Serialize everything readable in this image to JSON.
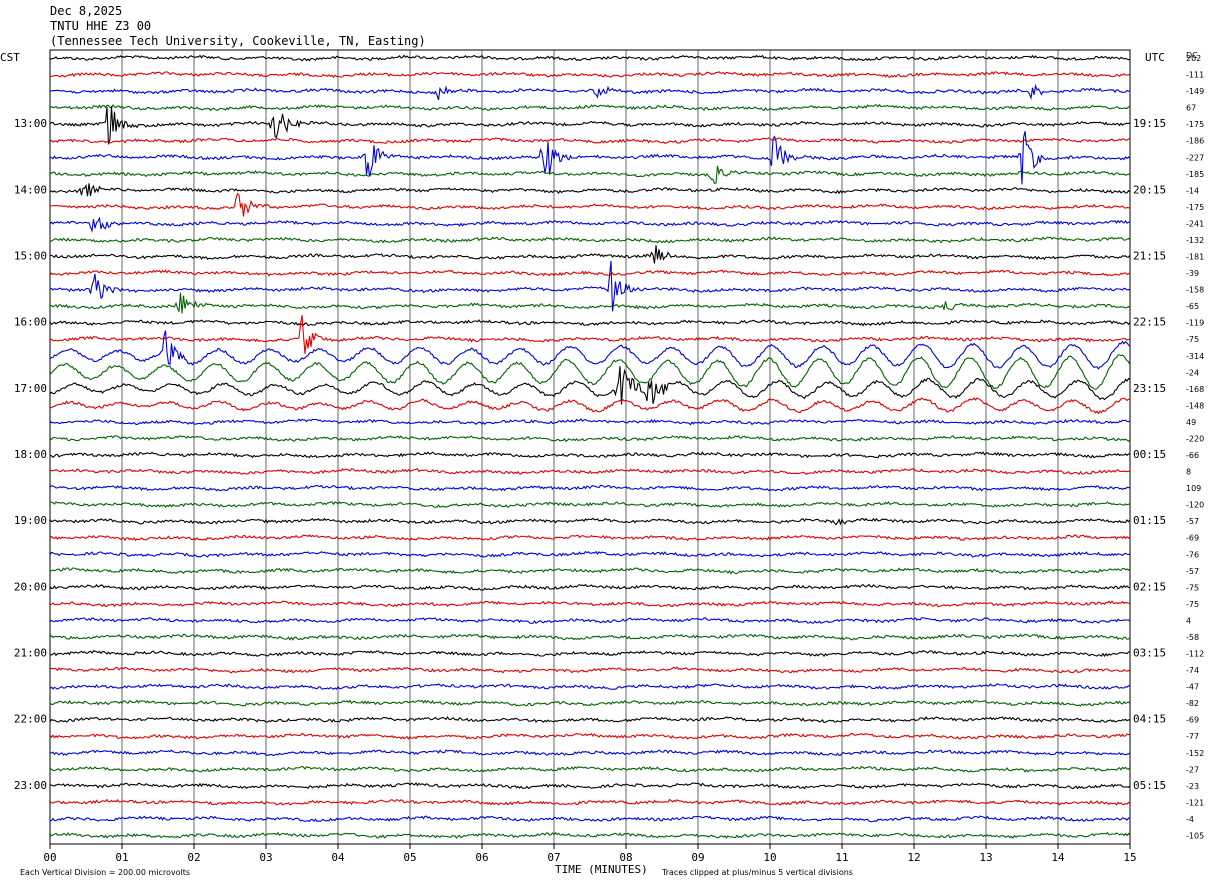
{
  "header": {
    "date": "Dec 8,2025",
    "station": "TNTU HHE Z3 00",
    "location": "(Tennessee Tech University, Cookeville, TN, Easting)"
  },
  "axes": {
    "left_zone": "CST",
    "right_zone": "UTC",
    "dc_label": "DC",
    "xlabel": "TIME (MINUTES)",
    "x_ticks": [
      "00",
      "01",
      "02",
      "03",
      "04",
      "05",
      "06",
      "07",
      "08",
      "09",
      "10",
      "11",
      "12",
      "13",
      "14",
      "15"
    ],
    "left_hours": [
      "13:00",
      "14:00",
      "15:00",
      "16:00",
      "17:00",
      "18:00",
      "19:00",
      "20:00",
      "21:00",
      "22:00",
      "23:00"
    ],
    "right_hours": [
      "19:15",
      "20:15",
      "21:15",
      "22:15",
      "23:15",
      "00:15",
      "01:15",
      "02:15",
      "03:15",
      "04:15",
      "05:15"
    ]
  },
  "footer": {
    "scale_note": "Each Vertical Division =  200.00 microvolts",
    "clip_note": "Traces clipped at plus/minus 5 vertical divisions"
  },
  "colors": {
    "cycle": [
      "#000000",
      "#e00000",
      "#0000e0",
      "#006400"
    ]
  },
  "chart_data": {
    "type": "line",
    "title": "TNTU HHE Z3 00",
    "xlabel": "TIME (MINUTES)",
    "xlim": [
      0,
      15
    ],
    "trace_count": 48,
    "minutes_per_trace": 15,
    "dc_offsets": [
      202,
      -111,
      -149,
      67,
      -175,
      -186,
      -227,
      -185,
      -14,
      -175,
      -241,
      -132,
      -181,
      -39,
      -158,
      -65,
      -119,
      -75,
      -314,
      -24,
      -168,
      -148,
      49,
      -220,
      -66,
      8,
      109,
      -120,
      -57,
      -69,
      -76,
      -57,
      -75,
      -75,
      4,
      -58,
      -112,
      -74,
      -47,
      -82,
      -69,
      -77,
      -152,
      -27,
      -23,
      -121,
      -4,
      -105
    ],
    "events": [
      {
        "trace": 2,
        "minute": 5.4,
        "amp": 10,
        "color_index": 2
      },
      {
        "trace": 2,
        "minute": 7.6,
        "amp": 10,
        "color_index": 2
      },
      {
        "trace": 2,
        "minute": 13.6,
        "amp": 12,
        "color_index": 2
      },
      {
        "trace": 4,
        "minute": 0.8,
        "amp": 30,
        "color_index": 1
      },
      {
        "trace": 4,
        "minute": 3.1,
        "amp": 30,
        "color_index": 0
      },
      {
        "trace": 6,
        "minute": 4.4,
        "amp": 28,
        "color_index": 2
      },
      {
        "trace": 6,
        "minute": 6.85,
        "amp": 35,
        "color_index": 2
      },
      {
        "trace": 6,
        "minute": 10.05,
        "amp": 25,
        "color_index": 2
      },
      {
        "trace": 6,
        "minute": 13.5,
        "amp": 35,
        "color_index": 2
      },
      {
        "trace": 7,
        "minute": 9.2,
        "amp": 20,
        "color_index": 3
      },
      {
        "trace": 8,
        "minute": 0.45,
        "amp": 15,
        "color_index": 0
      },
      {
        "trace": 9,
        "minute": 2.6,
        "amp": 25,
        "color_index": 1
      },
      {
        "trace": 10,
        "minute": 0.6,
        "amp": 14,
        "color_index": 2
      },
      {
        "trace": 12,
        "minute": 8.4,
        "amp": 12,
        "color_index": 0
      },
      {
        "trace": 14,
        "minute": 0.6,
        "amp": 22,
        "color_index": 2
      },
      {
        "trace": 14,
        "minute": 7.8,
        "amp": 35,
        "color_index": 2
      },
      {
        "trace": 15,
        "minute": 1.8,
        "amp": 18,
        "color_index": 3
      },
      {
        "trace": 15,
        "minute": 12.45,
        "amp": 8,
        "color_index": 3
      },
      {
        "trace": 17,
        "minute": 3.5,
        "amp": 25,
        "color_index": 1
      },
      {
        "trace": 18,
        "minute": 1.6,
        "amp": 25,
        "color_index": 2
      },
      {
        "trace": 20,
        "minute": 7.9,
        "amp": 35,
        "color_index": 0
      },
      {
        "trace": 20,
        "minute": 8.3,
        "amp": 25,
        "color_index": 0
      },
      {
        "trace": 28,
        "minute": 10.9,
        "amp": 6,
        "color_index": 0
      }
    ],
    "long_period": {
      "traces": [
        18,
        19,
        20,
        21
      ],
      "amp": [
        12,
        16,
        9,
        6
      ]
    }
  }
}
